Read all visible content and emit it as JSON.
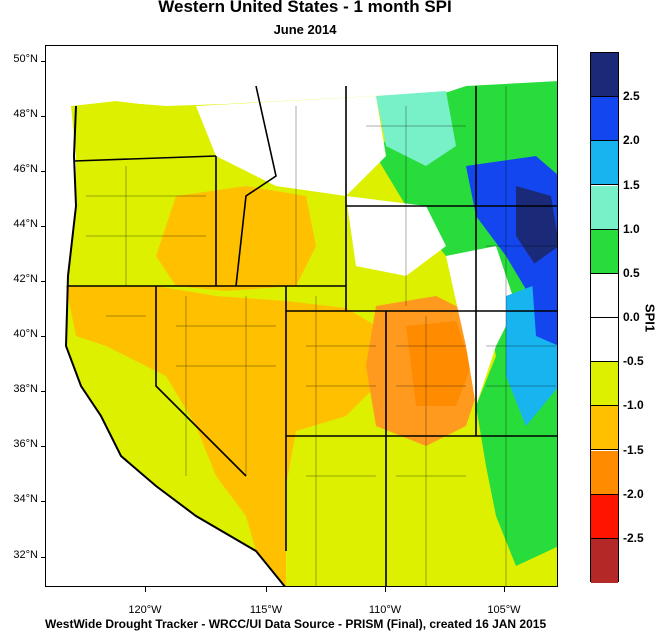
{
  "title": "Western United States - 1 month SPI",
  "subtitle": "June 2014",
  "footer": "WestWide Drought Tracker - WRCC/UI  Data Source - PRISM (Final), created 16 JAN 2015",
  "lat_labels": [
    "50°N",
    "48°N",
    "46°N",
    "44°N",
    "42°N",
    "40°N",
    "38°N",
    "36°N",
    "34°N",
    "32°N"
  ],
  "lon_labels": [
    "120°W",
    "115°W",
    "110°W",
    "105°W"
  ],
  "colorbar": {
    "label": "SPI1",
    "tick_labels": [
      "2.5",
      "2.0",
      "1.5",
      "1.0",
      "0.5",
      "0.0",
      "-0.5",
      "-1.0",
      "-1.5",
      "-2.0",
      "-2.5"
    ],
    "colors": [
      "#1a2a78",
      "#1446f0",
      "#18b4f0",
      "#78f0c8",
      "#28dc3c",
      "#ffffff",
      "#ffffff",
      "#dcf000",
      "#ffc000",
      "#ff8c00",
      "#ff1400",
      "#b42828"
    ]
  }
}
